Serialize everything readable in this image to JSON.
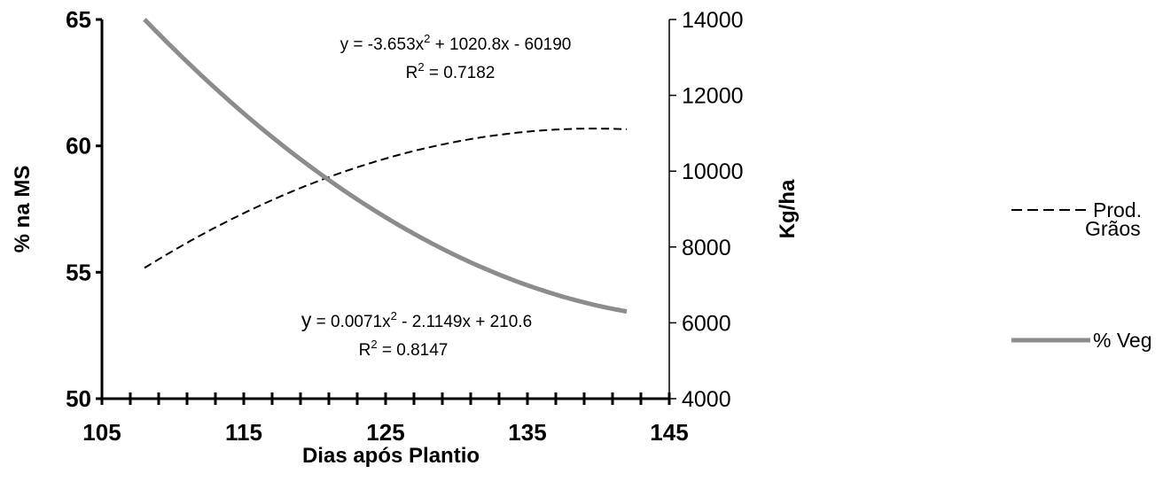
{
  "chart_data": {
    "type": "line",
    "xlabel": "Dias após Plantio",
    "ylabel": "% na MS",
    "y2label": "Kg/ha",
    "xlim": [
      105,
      145
    ],
    "ylim": [
      50,
      65
    ],
    "y2lim": [
      4000,
      14000
    ],
    "x_ticks": [
      105,
      115,
      125,
      135,
      145
    ],
    "y_ticks": [
      50,
      55,
      60,
      65
    ],
    "y2_ticks": [
      4000,
      6000,
      8000,
      10000,
      12000,
      14000
    ],
    "series": [
      {
        "name": "Prod. Grãos",
        "axis": "right",
        "style": "dashed",
        "color": "#000000",
        "equation_a": -3.653,
        "equation_b": 1020.8,
        "equation_c": -60190,
        "x_range": [
          108,
          142
        ]
      },
      {
        "name": "% Veg",
        "axis": "left",
        "style": "solid",
        "color": "#8c8c8c",
        "equation_a": 0.0071,
        "equation_b": -2.1149,
        "equation_c": 210.6,
        "x_range": [
          108,
          142
        ]
      }
    ],
    "annotations": {
      "grain_eq_prefix": "y = -3.653x",
      "grain_eq_suffix": " + 1020.8x - 60190",
      "grain_r2_prefix": "R",
      "grain_r2_suffix": " = 0.7182",
      "veg_eq_y": "y",
      "veg_eq_prefix": " = 0.0071x",
      "veg_eq_suffix": " - 2.1149x + 210.6",
      "veg_r2_prefix": "R",
      "veg_r2_suffix": " = 0.8147",
      "superscript": "2"
    },
    "legend": {
      "position": "right",
      "grain_line1": "Prod.",
      "grain_line2": "Grãos",
      "veg_label": "% Veg"
    }
  }
}
